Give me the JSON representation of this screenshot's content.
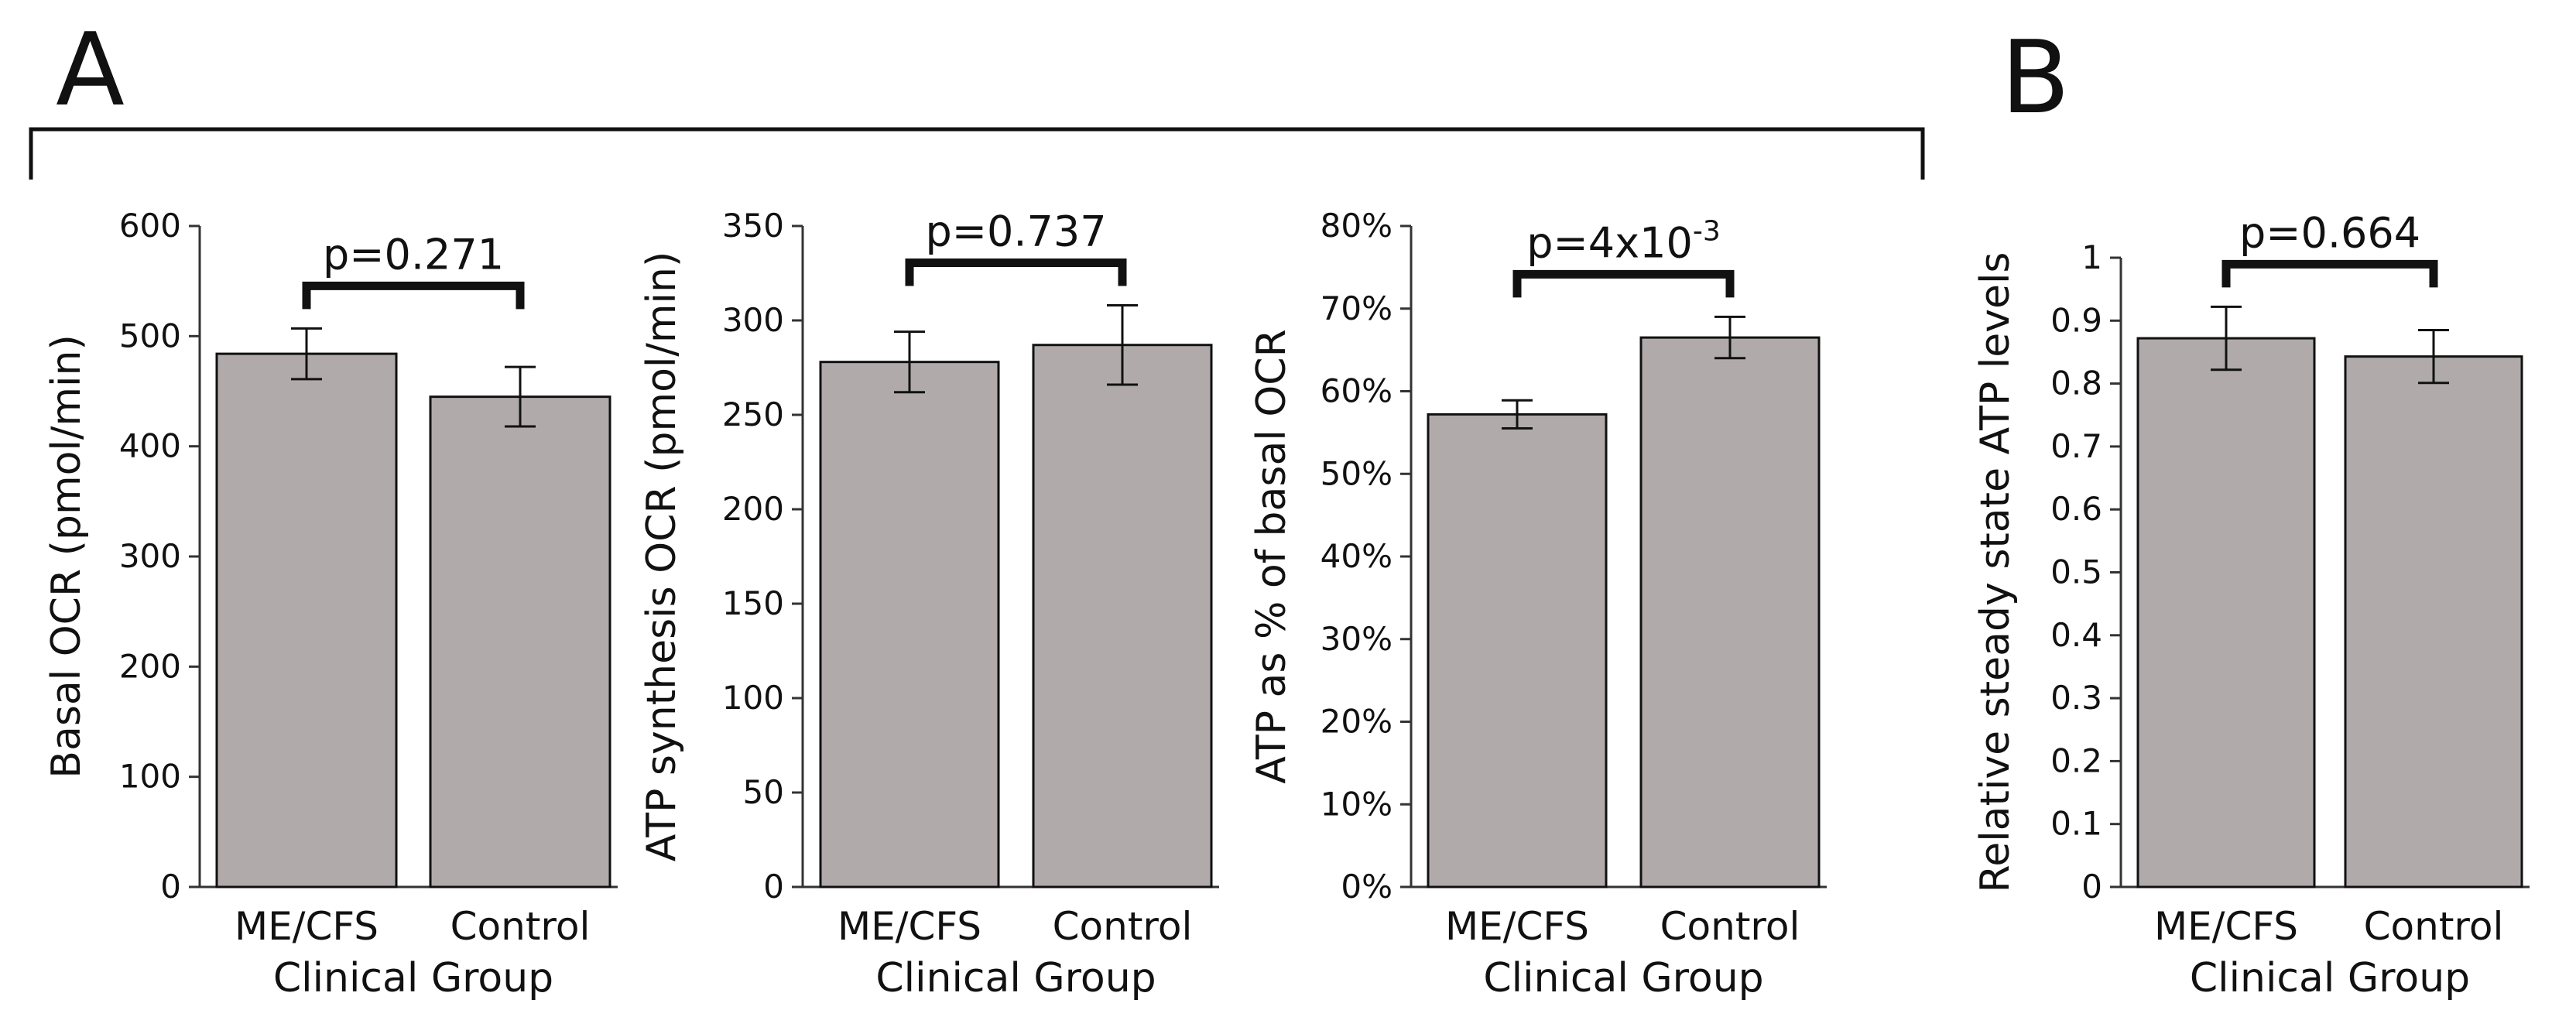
{
  "figure": {
    "panel_a_letter": "A",
    "panel_b_letter": "B"
  },
  "chart_data": [
    {
      "type": "bar",
      "panel": "A",
      "title": "",
      "categories": [
        "ME/CFS",
        "Control"
      ],
      "values": [
        484,
        445
      ],
      "errors": [
        23,
        27
      ],
      "xlabel": "Clinical Group",
      "ylabel": "Basal OCR (pmol/min)",
      "ylim": [
        0,
        600
      ],
      "yticks": [
        0,
        100,
        200,
        300,
        400,
        500,
        600
      ],
      "ytick_labels": [
        "0",
        "100",
        "200",
        "300",
        "400",
        "500",
        "600"
      ],
      "annotation": {
        "type": "p-value",
        "text": "p=0.271",
        "base": "",
        "exponent": ""
      },
      "bar_color": "#b0abaa",
      "grid": false
    },
    {
      "type": "bar",
      "panel": "A",
      "title": "",
      "categories": [
        "ME/CFS",
        "Control"
      ],
      "values": [
        278,
        287
      ],
      "errors": [
        16,
        21
      ],
      "xlabel": "Clinical Group",
      "ylabel": "ATP synthesis OCR (pmol/min)",
      "ylim": [
        0,
        350
      ],
      "yticks": [
        0,
        50,
        100,
        150,
        200,
        250,
        300,
        350
      ],
      "ytick_labels": [
        "0",
        "50",
        "100",
        "150",
        "200",
        "250",
        "300",
        "350"
      ],
      "annotation": {
        "type": "p-value",
        "text": "p=0.737",
        "base": "",
        "exponent": ""
      },
      "bar_color": "#b0abaa",
      "grid": false
    },
    {
      "type": "bar",
      "panel": "A",
      "title": "",
      "categories": [
        "ME/CFS",
        "Control"
      ],
      "values": [
        57.2,
        66.5
      ],
      "errors": [
        1.7,
        2.5
      ],
      "xlabel": "Clinical Group",
      "ylabel": "ATP as % of basal OCR",
      "ylim": [
        0,
        80
      ],
      "yticks": [
        0,
        10,
        20,
        30,
        40,
        50,
        60,
        70,
        80
      ],
      "ytick_labels": [
        "0%",
        "10%",
        "20%",
        "30%",
        "40%",
        "50%",
        "60%",
        "70%",
        "80%"
      ],
      "annotation": {
        "type": "p-value",
        "text": "",
        "base": "p=4x10",
        "exponent": "-3"
      },
      "bar_color": "#b0abaa",
      "grid": false
    },
    {
      "type": "bar",
      "panel": "B",
      "title": "",
      "categories": [
        "ME/CFS",
        "Control"
      ],
      "values": [
        0.872,
        0.843
      ],
      "errors": [
        0.05,
        0.042
      ],
      "xlabel": "Clinical Group",
      "ylabel": "Relative steady state ATP levels",
      "ylim": [
        0,
        1
      ],
      "yticks": [
        0,
        0.1,
        0.2,
        0.3,
        0.4,
        0.5,
        0.6,
        0.7,
        0.8,
        0.9,
        1
      ],
      "ytick_labels": [
        "0",
        "0.1",
        "0.2",
        "0.3",
        "0.4",
        "0.5",
        "0.6",
        "0.7",
        "0.8",
        "0.9",
        "1"
      ],
      "annotation": {
        "type": "p-value",
        "text": "p=0.664",
        "base": "",
        "exponent": ""
      },
      "bar_color": "#b0abaa",
      "grid": false
    }
  ]
}
